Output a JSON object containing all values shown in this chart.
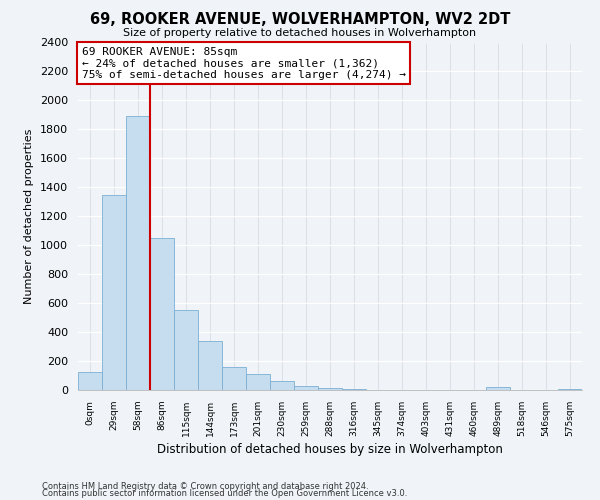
{
  "title": "69, ROOKER AVENUE, WOLVERHAMPTON, WV2 2DT",
  "subtitle": "Size of property relative to detached houses in Wolverhampton",
  "xlabel": "Distribution of detached houses by size in Wolverhampton",
  "ylabel": "Number of detached properties",
  "bin_labels": [
    "0sqm",
    "29sqm",
    "58sqm",
    "86sqm",
    "115sqm",
    "144sqm",
    "173sqm",
    "201sqm",
    "230sqm",
    "259sqm",
    "288sqm",
    "316sqm",
    "345sqm",
    "374sqm",
    "403sqm",
    "431sqm",
    "460sqm",
    "489sqm",
    "518sqm",
    "546sqm",
    "575sqm"
  ],
  "bar_heights": [
    125,
    1350,
    1890,
    1050,
    550,
    335,
    160,
    110,
    60,
    30,
    12,
    5,
    2,
    0,
    0,
    0,
    0,
    18,
    0,
    0,
    10
  ],
  "bar_color": "#c6ddf0",
  "bar_edge_color": "#7bafd4",
  "property_line_x": 3,
  "property_line_color": "#cc0000",
  "ylim": [
    0,
    2400
  ],
  "yticks": [
    0,
    200,
    400,
    600,
    800,
    1000,
    1200,
    1400,
    1600,
    1800,
    2000,
    2200,
    2400
  ],
  "annotation_title": "69 ROOKER AVENUE: 85sqm",
  "annotation_line1": "← 24% of detached houses are smaller (1,362)",
  "annotation_line2": "75% of semi-detached houses are larger (4,274) →",
  "annotation_box_color": "#ffffff",
  "annotation_box_edge": "#cc0000",
  "footnote1": "Contains HM Land Registry data © Crown copyright and database right 2024.",
  "footnote2": "Contains public sector information licensed under the Open Government Licence v3.0.",
  "bg_color": "#f0f4f8"
}
